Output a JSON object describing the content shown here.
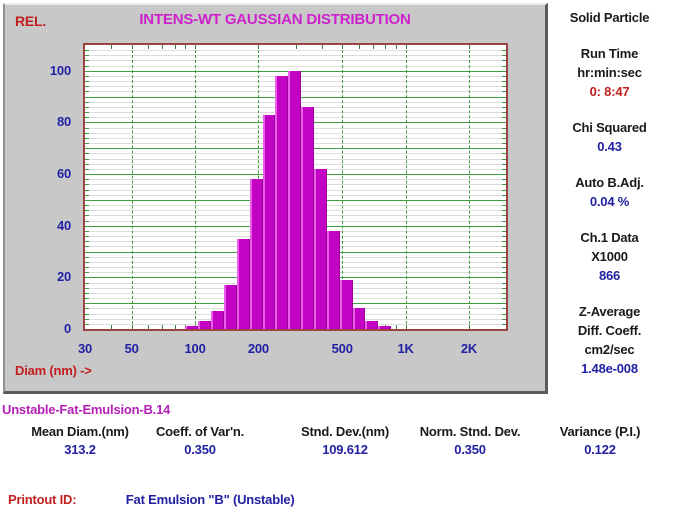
{
  "chart": {
    "title": "INTENS-WT GAUSSIAN DISTRIBUTION",
    "y_axis_label": "REL.",
    "x_axis_label": "Diam (nm) ->"
  },
  "chart_data": {
    "type": "bar",
    "title": "INTENS-WT GAUSSIAN DISTRIBUTION",
    "xlabel": "Diam (nm)",
    "ylabel": "REL.",
    "x_scale": "log",
    "xlim": [
      30,
      3000
    ],
    "ylim": [
      0,
      110
    ],
    "y_ticks": [
      0,
      20,
      40,
      60,
      80,
      100
    ],
    "x_ticks": [
      {
        "value": 30,
        "label": "30"
      },
      {
        "value": 50,
        "label": "50"
      },
      {
        "value": 100,
        "label": "100"
      },
      {
        "value": 200,
        "label": "200"
      },
      {
        "value": 500,
        "label": "500"
      },
      {
        "value": 1000,
        "label": "1K"
      },
      {
        "value": 2000,
        "label": "2K"
      }
    ],
    "bin_edges_nm": [
      90.0,
      103.6,
      119.2,
      137.2,
      158.0,
      181.8,
      209.3,
      240.9,
      277.2,
      319.1,
      367.3,
      422.7,
      486.6,
      560.0,
      644.6,
      741.9,
      854.0
    ],
    "values": [
      1,
      3,
      7,
      17,
      35,
      58,
      83,
      98,
      100,
      86,
      62,
      38,
      19,
      8,
      3,
      1
    ],
    "grid": {
      "on": true,
      "h_major_step": 10,
      "h_minor_step": 2,
      "v_lines_at": [
        50,
        100,
        200,
        500,
        1000,
        2000
      ],
      "x_minor_ticks": [
        40,
        50,
        60,
        70,
        80,
        90,
        100,
        200,
        300,
        400,
        500,
        600,
        700,
        800,
        900,
        1000,
        2000
      ]
    },
    "legend": "none"
  },
  "right_panel": {
    "sections": [
      {
        "lines": [
          {
            "text": "Solid Particle",
            "color": "black"
          }
        ]
      },
      {
        "lines": [
          {
            "text": "Run Time",
            "color": "black"
          },
          {
            "text": "hr:min:sec",
            "color": "black"
          },
          {
            "text": "0: 8:47",
            "color": "red"
          }
        ]
      },
      {
        "lines": [
          {
            "text": "Chi Squared",
            "color": "black"
          },
          {
            "text": "0.43",
            "color": "blue"
          }
        ]
      },
      {
        "lines": [
          {
            "text": "Auto B.Adj.",
            "color": "black"
          },
          {
            "text": "0.04 %",
            "color": "blue"
          }
        ]
      },
      {
        "lines": [
          {
            "text": "Ch.1 Data",
            "color": "black"
          },
          {
            "text": "X1000",
            "color": "black"
          },
          {
            "text": "866",
            "color": "blue"
          }
        ]
      },
      {
        "lines": [
          {
            "text": "Z-Average",
            "color": "black"
          },
          {
            "text": "Diff. Coeff.",
            "color": "black"
          },
          {
            "text": "cm2/sec",
            "color": "black"
          },
          {
            "text": "1.48e-008",
            "color": "blue"
          }
        ]
      }
    ]
  },
  "results": {
    "sample_id": "Unstable-Fat-Emulsion-B.14",
    "columns": [
      {
        "label": "Mean Diam.(nm)",
        "value": "313.2"
      },
      {
        "label": "Coeff. of Var'n.",
        "value": "0.350"
      },
      {
        "label": "Stnd. Dev.(nm)",
        "value": "109.612"
      },
      {
        "label": "Norm. Stnd. Dev.",
        "value": "0.350"
      },
      {
        "label": "Variance (P.I.)",
        "value": "0.122"
      }
    ],
    "printout_label": "Printout ID:",
    "printout_value": "Fat Emulsion \"B\" (Unstable)"
  },
  "colors": {
    "panel_gray": "#c8c8c8",
    "bar": "#c303c3",
    "bar_highlight": "#ea5fea",
    "bar_shadow": "#9c029c",
    "grid_green": "#3f9e3f",
    "grid_minor": "#dcdcdc",
    "plot_border": "#9b4444",
    "title_magenta": "#cc22cc",
    "label_red": "#c22020",
    "value_blue": "#2121a3",
    "text_black": "#1a1a1a"
  }
}
